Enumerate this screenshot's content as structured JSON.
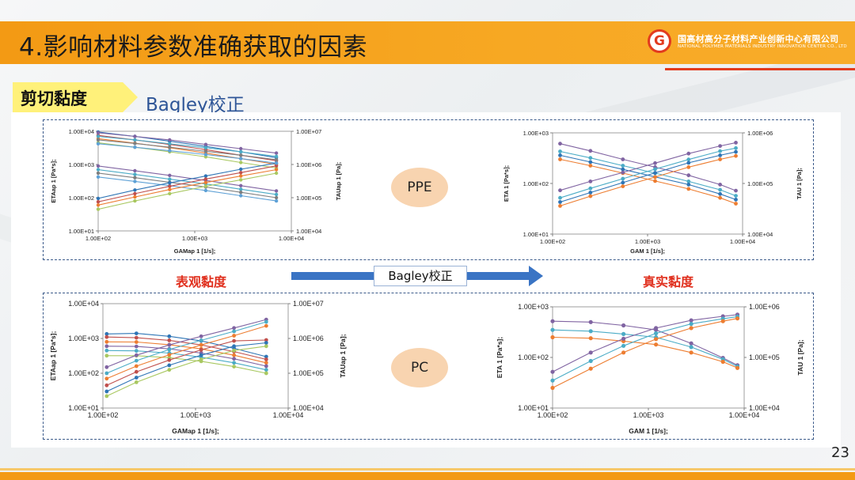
{
  "slide": {
    "title": "4.影响材料参数准确获取的因素",
    "tag": "剪切黏度",
    "subtitle": "Bagley校正",
    "page_number": "23",
    "label_apparent": "表观黏度",
    "label_true": "真实黏度",
    "arrow_label": "Bagley校正",
    "oval_top": "PPE",
    "oval_bottom": "PC"
  },
  "logo": {
    "mark": "G",
    "name_cn": "国高材高分子材料产业创新中心有限公司",
    "name_en": "NATIONAL POLYMER MATERIALS INDUSTRY INNOVATION CENTER CO., LTD"
  },
  "colors": {
    "header": "#f39a14",
    "accent_red": "#e0301e",
    "blue": "#2e5597",
    "series": [
      "#2e75b6",
      "#5ea1d6",
      "#ed7d31",
      "#a9c861",
      "#8064a2",
      "#c0504d",
      "#4bacc6",
      "#7f7f7f"
    ]
  },
  "chart_data": [
    {
      "type": "line",
      "material": "PPE",
      "kind": "apparent",
      "xscale": "log",
      "yscale": "log",
      "xlim": [
        100,
        10000
      ],
      "xticks": [
        "1.00E+02",
        "1.00E+03",
        "1.00E+04"
      ],
      "ylim": [
        10,
        10000
      ],
      "yticks": [
        "1.00E+01",
        "1.00E+02",
        "1.00E+03",
        "1.00E+04"
      ],
      "y2lim": [
        10000,
        10000000
      ],
      "y2ticks": [
        "1.00E+04",
        "1.00E+05",
        "1.00E+06",
        "1.00E+07"
      ],
      "xlabel": "GAMap 1  [1/s];",
      "ylabel": "ETAap 1  [Pa*s];",
      "y2label": "TAUap 1  [Pa];",
      "x": [
        100,
        240,
        550,
        1300,
        3000,
        7000
      ],
      "series": [
        {
          "axis": "left",
          "color": "#2e75b6",
          "values": [
            9500,
            7000,
            5000,
            3500,
            2400,
            1600
          ]
        },
        {
          "axis": "left",
          "color": "#c0504d",
          "values": [
            7500,
            5500,
            4000,
            2800,
            1900,
            1300
          ]
        },
        {
          "axis": "left",
          "color": "#ed7d31",
          "values": [
            6000,
            4400,
            3200,
            2200,
            1500,
            1000
          ]
        },
        {
          "axis": "left",
          "color": "#a9c861",
          "values": [
            4500,
            3300,
            2400,
            1700,
            1150,
            780
          ]
        },
        {
          "axis": "left",
          "color": "#8064a2",
          "values": [
            900,
            650,
            470,
            330,
            230,
            160
          ]
        },
        {
          "axis": "left",
          "color": "#4bacc6",
          "values": [
            700,
            500,
            360,
            260,
            180,
            125
          ]
        },
        {
          "axis": "left",
          "color": "#7f7f7f",
          "values": [
            550,
            400,
            290,
            210,
            145,
            100
          ]
        },
        {
          "axis": "left",
          "color": "#5ea1d6",
          "values": [
            420,
            310,
            230,
            165,
            115,
            80
          ]
        },
        {
          "axis": "right",
          "color": "#2e75b6",
          "values": [
            95000,
            170000,
            280000,
            450000,
            720000,
            1100000
          ]
        },
        {
          "axis": "right",
          "color": "#c0504d",
          "values": [
            75000,
            132000,
            220000,
            364000,
            570000,
            910000
          ]
        },
        {
          "axis": "right",
          "color": "#ed7d31",
          "values": [
            60000,
            105000,
            176000,
            286000,
            450000,
            700000
          ]
        },
        {
          "axis": "right",
          "color": "#a9c861",
          "values": [
            45000,
            80000,
            132000,
            221000,
            345000,
            546000
          ]
        },
        {
          "axis": "right",
          "color": "#8064a2",
          "values": [
            9000000,
            7000000,
            5500000,
            4000000,
            3000000,
            2200000
          ]
        },
        {
          "axis": "right",
          "color": "#4bacc6",
          "values": [
            7000000,
            5500000,
            4200000,
            3200000,
            2400000,
            1750000
          ]
        },
        {
          "axis": "right",
          "color": "#7f7f7f",
          "values": [
            5500000,
            4300000,
            3300000,
            2500000,
            1900000,
            1400000
          ]
        },
        {
          "axis": "right",
          "color": "#5ea1d6",
          "values": [
            4200000,
            3300000,
            2600000,
            2000000,
            1500000,
            1100000
          ]
        }
      ]
    },
    {
      "type": "line",
      "material": "PPE",
      "kind": "true",
      "xscale": "log",
      "yscale": "log",
      "xlim": [
        100,
        10000
      ],
      "xticks": [
        "1.00E+02",
        "1.00E+03",
        "1.00E+04"
      ],
      "ylim": [
        10,
        1000
      ],
      "yticks": [
        "1.00E+01",
        "1.00E+02",
        "1.00E+03"
      ],
      "y2lim": [
        10000,
        1000000
      ],
      "y2ticks": [
        "1.00E+04",
        "1.00E+05",
        "1.00E+06"
      ],
      "xlabel": "GAM 1  [1/s];",
      "ylabel": "ETA 1  [Pa*s];",
      "y2label": "TAU 1  [Pa];",
      "x": [
        120,
        250,
        550,
        1200,
        2700,
        5800,
        8500
      ],
      "series": [
        {
          "axis": "left",
          "color": "#8064a2",
          "values": [
            610,
            440,
            300,
            210,
            145,
            95,
            72
          ]
        },
        {
          "axis": "left",
          "color": "#4bacc6",
          "values": [
            430,
            320,
            225,
            160,
            110,
            75,
            57
          ]
        },
        {
          "axis": "left",
          "color": "#2e75b6",
          "values": [
            360,
            265,
            190,
            135,
            95,
            62,
            48
          ]
        },
        {
          "axis": "left",
          "color": "#ed7d31",
          "values": [
            300,
            225,
            160,
            112,
            78,
            52,
            40
          ]
        },
        {
          "axis": "right",
          "color": "#8064a2",
          "values": [
            73000,
            110000,
            165000,
            252000,
            390000,
            550000,
            640000
          ]
        },
        {
          "axis": "right",
          "color": "#4bacc6",
          "values": [
            52000,
            80000,
            124000,
            192000,
            297000,
            435000,
            500000
          ]
        },
        {
          "axis": "right",
          "color": "#2e75b6",
          "values": [
            43000,
            66000,
            104000,
            162000,
            256000,
            360000,
            420000
          ]
        },
        {
          "axis": "right",
          "color": "#ed7d31",
          "values": [
            36000,
            56000,
            88000,
            134000,
            210000,
            300000,
            350000
          ]
        }
      ]
    },
    {
      "type": "line",
      "material": "PC",
      "kind": "apparent",
      "xscale": "log",
      "yscale": "log",
      "xlim": [
        100,
        10000
      ],
      "xticks": [
        "1.00E+02",
        "1.00E+03",
        "1.00E+04"
      ],
      "ylim": [
        10,
        10000
      ],
      "yticks": [
        "1.00E+01",
        "1.00E+02",
        "1.00E+03",
        "1.00E+04"
      ],
      "y2lim": [
        10000,
        10000000
      ],
      "y2ticks": [
        "1.00E+04",
        "1.00E+05",
        "1.00E+06",
        "1.00E+07"
      ],
      "xlabel": "GAMap 1  [1/s];",
      "ylabel": "ETAap 1  [Pa*s];",
      "y2label": "TAUap 1  [Pa];",
      "x": [
        110,
        230,
        520,
        1150,
        2600,
        5800
      ],
      "series": [
        {
          "axis": "left",
          "color": "#2e75b6",
          "values": [
            1350,
            1400,
            1150,
            850,
            520,
            300
          ]
        },
        {
          "axis": "left",
          "color": "#c0504d",
          "values": [
            1100,
            1050,
            880,
            650,
            420,
            250
          ]
        },
        {
          "axis": "left",
          "color": "#ed7d31",
          "values": [
            800,
            790,
            660,
            500,
            330,
            200
          ]
        },
        {
          "axis": "left",
          "color": "#8064a2",
          "values": [
            600,
            590,
            500,
            380,
            260,
            160
          ]
        },
        {
          "axis": "left",
          "color": "#4bacc6",
          "values": [
            450,
            440,
            380,
            290,
            200,
            125
          ]
        },
        {
          "axis": "left",
          "color": "#a9c861",
          "values": [
            320,
            320,
            280,
            220,
            155,
            100
          ]
        },
        {
          "axis": "right",
          "color": "#8064a2",
          "values": [
            150000,
            330000,
            650000,
            1150000,
            2000000,
            3500000
          ]
        },
        {
          "axis": "right",
          "color": "#4bacc6",
          "values": [
            100000,
            230000,
            480000,
            880000,
            1600000,
            3000000
          ]
        },
        {
          "axis": "right",
          "color": "#ed7d31",
          "values": [
            70000,
            160000,
            340000,
            650000,
            1200000,
            2300000
          ]
        },
        {
          "axis": "right",
          "color": "#c0504d",
          "values": [
            45000,
            110000,
            240000,
            470000,
            850000,
            900000
          ]
        },
        {
          "axis": "right",
          "color": "#2e75b6",
          "values": [
            30000,
            75000,
            170000,
            330000,
            600000,
            750000
          ]
        },
        {
          "axis": "right",
          "color": "#a9c861",
          "values": [
            22000,
            55000,
            125000,
            250000,
            450000,
            600000
          ]
        }
      ]
    },
    {
      "type": "line",
      "material": "PC",
      "kind": "true",
      "xscale": "log",
      "yscale": "log",
      "xlim": [
        100,
        10000
      ],
      "xticks": [
        "1.00E+02",
        "1.00E+03",
        "1.00E+04"
      ],
      "ylim": [
        10,
        1000
      ],
      "yticks": [
        "1.00E+01",
        "1.00E+02",
        "1.00E+03"
      ],
      "y2lim": [
        10000,
        1000000
      ],
      "y2ticks": [
        "1.00E+04",
        "1.00E+05",
        "1.00E+06"
      ],
      "xlabel": "GAM 1  [1/s];",
      "ylabel": "ETA 1  [Pa*s];",
      "y2label": "TAU 1  [Pa];",
      "x": [
        100,
        250,
        550,
        1200,
        2800,
        6000,
        8500
      ],
      "series": [
        {
          "axis": "left",
          "color": "#8064a2",
          "values": [
            520,
            500,
            430,
            350,
            190,
            98,
            70
          ]
        },
        {
          "axis": "left",
          "color": "#4bacc6",
          "values": [
            350,
            330,
            290,
            250,
            160,
            92,
            66
          ]
        },
        {
          "axis": "left",
          "color": "#ed7d31",
          "values": [
            250,
            240,
            210,
            180,
            125,
            82,
            62
          ]
        },
        {
          "axis": "right",
          "color": "#8064a2",
          "values": [
            52000,
            125000,
            235000,
            380000,
            540000,
            650000,
            700000
          ]
        },
        {
          "axis": "right",
          "color": "#4bacc6",
          "values": [
            35000,
            85000,
            170000,
            300000,
            460000,
            580000,
            640000
          ]
        },
        {
          "axis": "right",
          "color": "#ed7d31",
          "values": [
            25000,
            60000,
            125000,
            230000,
            380000,
            520000,
            590000
          ]
        }
      ]
    }
  ]
}
